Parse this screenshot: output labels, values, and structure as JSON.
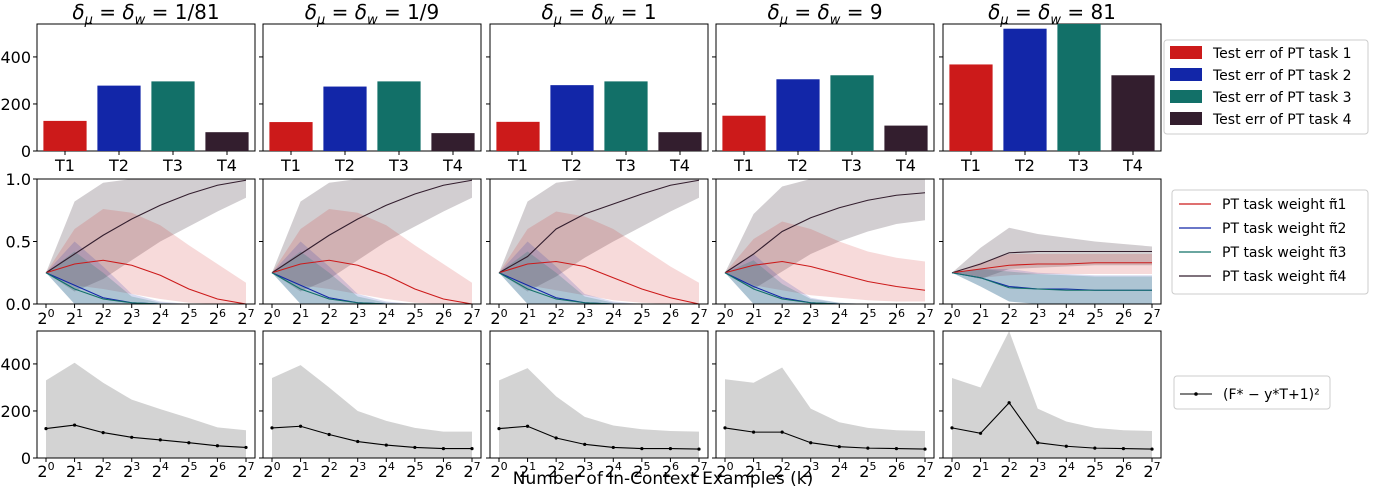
{
  "figure": {
    "xlabel": "Number of In-Context Examples (k)"
  },
  "titles": [
    "δμ = δw = 1/81",
    "δμ = δw = 1/9",
    "δμ = δw = 1",
    "δμ = δw = 9",
    "δμ = δw = 81"
  ],
  "title_prefix": "δ",
  "panel_params": [
    "1/81",
    "1/9",
    "1",
    "9",
    "81"
  ],
  "colors": {
    "task1": "#cc1a1a",
    "task2": "#1226a8",
    "task3": "#127068",
    "task4": "#331e2e",
    "error_line": "#000000",
    "error_band": "#d3d3d3"
  },
  "legends": {
    "row1": [
      "Test err of PT task 1",
      "Test err of PT task 2",
      "Test err of PT task 3",
      "Test err of PT task 4"
    ],
    "row2": [
      "PT task weight π̃1",
      "PT task weight π̃2",
      "PT task weight π̃3",
      "PT task weight π̃4"
    ],
    "row3": [
      "(F* − y*T+1)²"
    ]
  },
  "chart_data": [
    {
      "type": "bar",
      "row": "test error per pretraining task",
      "categories": [
        "T1",
        "T2",
        "T3",
        "T4"
      ],
      "ylim": [
        0,
        540
      ],
      "yticks": [
        0,
        200,
        400
      ],
      "panels": [
        {
          "param": "1/81",
          "values": [
            128,
            278,
            296,
            80
          ]
        },
        {
          "param": "1/9",
          "values": [
            123,
            274,
            296,
            76
          ]
        },
        {
          "param": "1",
          "values": [
            124,
            280,
            296,
            80
          ]
        },
        {
          "param": "9",
          "values": [
            150,
            305,
            322,
            108
          ]
        },
        {
          "param": "81",
          "values": [
            368,
            520,
            540,
            322
          ]
        }
      ]
    },
    {
      "type": "line",
      "row": "PT task weight vs number of in-context examples",
      "x_tick_labels": [
        "2^0",
        "2^1",
        "2^2",
        "2^3",
        "2^4",
        "2^5",
        "2^6",
        "2^7"
      ],
      "x": [
        1,
        2,
        4,
        8,
        16,
        32,
        64,
        128
      ],
      "ylim": [
        0,
        1
      ],
      "yticks": [
        0.0,
        0.5,
        1.0
      ],
      "ytick_labels": [
        "0.0",
        "0.5",
        "1.0"
      ],
      "panels": [
        {
          "param": "1/81",
          "series": [
            {
              "values": [
                0.25,
                0.32,
                0.35,
                0.31,
                0.23,
                0.12,
                0.04,
                0.0
              ],
              "lower": [
                0.25,
                0.15,
                0.12,
                0.08,
                0.04,
                0.01,
                0.0,
                0.0
              ],
              "upper": [
                0.25,
                0.6,
                0.76,
                0.73,
                0.63,
                0.47,
                0.32,
                0.17
              ]
            },
            {
              "values": [
                0.25,
                0.15,
                0.05,
                0.01,
                0.0,
                0.0,
                0.0,
                0.0
              ],
              "lower": [
                0.25,
                0.0,
                0.0,
                0.0,
                0.0,
                0.0,
                0.0,
                0.0
              ],
              "upper": [
                0.25,
                0.5,
                0.3,
                0.08,
                0.02,
                0.0,
                0.0,
                0.0
              ]
            },
            {
              "values": [
                0.25,
                0.12,
                0.04,
                0.01,
                0.0,
                0.0,
                0.0,
                0.0
              ],
              "lower": [
                0.25,
                0.0,
                0.0,
                0.0,
                0.0,
                0.0,
                0.0,
                0.0
              ],
              "upper": [
                0.25,
                0.42,
                0.25,
                0.06,
                0.01,
                0.0,
                0.0,
                0.0
              ]
            },
            {
              "values": [
                0.25,
                0.4,
                0.55,
                0.68,
                0.79,
                0.88,
                0.95,
                0.99
              ],
              "lower": [
                0.25,
                0.1,
                0.2,
                0.35,
                0.5,
                0.62,
                0.74,
                0.85
              ],
              "upper": [
                0.25,
                0.82,
                0.97,
                1.0,
                1.0,
                1.0,
                1.0,
                1.0
              ]
            }
          ]
        },
        {
          "param": "1/9",
          "series": [
            {
              "values": [
                0.25,
                0.32,
                0.35,
                0.31,
                0.23,
                0.12,
                0.04,
                0.0
              ],
              "lower": [
                0.25,
                0.15,
                0.12,
                0.08,
                0.04,
                0.01,
                0.0,
                0.0
              ],
              "upper": [
                0.25,
                0.6,
                0.76,
                0.73,
                0.63,
                0.47,
                0.32,
                0.17
              ]
            },
            {
              "values": [
                0.25,
                0.15,
                0.05,
                0.01,
                0.0,
                0.0,
                0.0,
                0.0
              ],
              "lower": [
                0.25,
                0.0,
                0.0,
                0.0,
                0.0,
                0.0,
                0.0,
                0.0
              ],
              "upper": [
                0.25,
                0.5,
                0.3,
                0.08,
                0.02,
                0.0,
                0.0,
                0.0
              ]
            },
            {
              "values": [
                0.25,
                0.12,
                0.04,
                0.01,
                0.0,
                0.0,
                0.0,
                0.0
              ],
              "lower": [
                0.25,
                0.0,
                0.0,
                0.0,
                0.0,
                0.0,
                0.0,
                0.0
              ],
              "upper": [
                0.25,
                0.42,
                0.25,
                0.06,
                0.01,
                0.0,
                0.0,
                0.0
              ]
            },
            {
              "values": [
                0.25,
                0.4,
                0.55,
                0.68,
                0.79,
                0.88,
                0.95,
                0.99
              ],
              "lower": [
                0.25,
                0.1,
                0.2,
                0.35,
                0.5,
                0.62,
                0.74,
                0.85
              ],
              "upper": [
                0.25,
                0.82,
                0.97,
                1.0,
                1.0,
                1.0,
                1.0,
                1.0
              ]
            }
          ]
        },
        {
          "param": "1",
          "series": [
            {
              "values": [
                0.25,
                0.32,
                0.34,
                0.3,
                0.21,
                0.12,
                0.05,
                0.0
              ],
              "lower": [
                0.25,
                0.15,
                0.11,
                0.07,
                0.03,
                0.01,
                0.0,
                0.0
              ],
              "upper": [
                0.25,
                0.6,
                0.74,
                0.7,
                0.6,
                0.45,
                0.3,
                0.17
              ]
            },
            {
              "values": [
                0.25,
                0.15,
                0.05,
                0.01,
                0.0,
                0.0,
                0.0,
                0.0
              ],
              "lower": [
                0.25,
                0.0,
                0.0,
                0.0,
                0.0,
                0.0,
                0.0,
                0.0
              ],
              "upper": [
                0.25,
                0.5,
                0.3,
                0.08,
                0.02,
                0.0,
                0.0,
                0.0
              ]
            },
            {
              "values": [
                0.25,
                0.12,
                0.04,
                0.01,
                0.0,
                0.0,
                0.0,
                0.0
              ],
              "lower": [
                0.25,
                0.0,
                0.0,
                0.0,
                0.0,
                0.0,
                0.0,
                0.0
              ],
              "upper": [
                0.25,
                0.42,
                0.25,
                0.06,
                0.01,
                0.0,
                0.0,
                0.0
              ]
            },
            {
              "values": [
                0.25,
                0.38,
                0.6,
                0.72,
                0.8,
                0.88,
                0.95,
                0.99
              ],
              "lower": [
                0.25,
                0.1,
                0.22,
                0.37,
                0.5,
                0.62,
                0.74,
                0.85
              ],
              "upper": [
                0.25,
                0.82,
                0.97,
                1.0,
                1.0,
                1.0,
                1.0,
                1.0
              ]
            }
          ]
        },
        {
          "param": "9",
          "series": [
            {
              "values": [
                0.25,
                0.31,
                0.34,
                0.3,
                0.24,
                0.18,
                0.14,
                0.11
              ],
              "lower": [
                0.25,
                0.15,
                0.11,
                0.07,
                0.05,
                0.03,
                0.02,
                0.02
              ],
              "upper": [
                0.25,
                0.52,
                0.66,
                0.6,
                0.5,
                0.42,
                0.37,
                0.34
              ]
            },
            {
              "values": [
                0.25,
                0.14,
                0.05,
                0.01,
                0.0,
                0.0,
                0.0,
                0.0
              ],
              "lower": [
                0.25,
                0.0,
                0.0,
                0.0,
                0.0,
                0.0,
                0.0,
                0.0
              ],
              "upper": [
                0.25,
                0.4,
                0.2,
                0.05,
                0.01,
                0.0,
                0.0,
                0.0
              ]
            },
            {
              "values": [
                0.25,
                0.12,
                0.04,
                0.01,
                0.0,
                0.0,
                0.0,
                0.0
              ],
              "lower": [
                0.25,
                0.0,
                0.0,
                0.0,
                0.0,
                0.0,
                0.0,
                0.0
              ],
              "upper": [
                0.25,
                0.35,
                0.16,
                0.04,
                0.01,
                0.0,
                0.0,
                0.0
              ]
            },
            {
              "values": [
                0.25,
                0.4,
                0.58,
                0.69,
                0.77,
                0.83,
                0.87,
                0.89
              ],
              "lower": [
                0.25,
                0.12,
                0.26,
                0.4,
                0.5,
                0.58,
                0.64,
                0.67
              ],
              "upper": [
                0.25,
                0.72,
                0.94,
                1.0,
                1.0,
                1.0,
                1.0,
                1.0
              ]
            }
          ]
        },
        {
          "param": "81",
          "series": [
            {
              "values": [
                0.25,
                0.28,
                0.31,
                0.32,
                0.32,
                0.33,
                0.33,
                0.33
              ],
              "lower": [
                0.25,
                0.21,
                0.23,
                0.24,
                0.24,
                0.24,
                0.24,
                0.24
              ],
              "upper": [
                0.25,
                0.33,
                0.4,
                0.4,
                0.4,
                0.4,
                0.4,
                0.4
              ]
            },
            {
              "values": [
                0.25,
                0.21,
                0.14,
                0.12,
                0.12,
                0.11,
                0.11,
                0.11
              ],
              "lower": [
                0.25,
                0.14,
                0.02,
                0.0,
                0.0,
                0.0,
                0.0,
                0.0
              ],
              "upper": [
                0.25,
                0.28,
                0.28,
                0.25,
                0.24,
                0.23,
                0.23,
                0.23
              ]
            },
            {
              "values": [
                0.25,
                0.21,
                0.13,
                0.12,
                0.11,
                0.11,
                0.11,
                0.11
              ],
              "lower": [
                0.25,
                0.14,
                0.02,
                0.0,
                0.0,
                0.0,
                0.0,
                0.0
              ],
              "upper": [
                0.25,
                0.28,
                0.26,
                0.24,
                0.23,
                0.22,
                0.22,
                0.22
              ]
            },
            {
              "values": [
                0.25,
                0.32,
                0.41,
                0.42,
                0.42,
                0.42,
                0.42,
                0.42
              ],
              "lower": [
                0.25,
                0.2,
                0.28,
                0.29,
                0.3,
                0.31,
                0.31,
                0.31
              ],
              "upper": [
                0.25,
                0.45,
                0.61,
                0.56,
                0.53,
                0.5,
                0.48,
                0.46
              ]
            }
          ]
        }
      ]
    },
    {
      "type": "line",
      "row": "squared error vs number of in-context examples",
      "x_tick_labels": [
        "2^0",
        "2^1",
        "2^2",
        "2^3",
        "2^4",
        "2^5",
        "2^6",
        "2^7"
      ],
      "x": [
        1,
        2,
        4,
        8,
        16,
        32,
        64,
        128
      ],
      "ylim": [
        0,
        540
      ],
      "yticks": [
        0,
        200,
        400
      ],
      "panels": [
        {
          "param": "1/81",
          "values": [
            125,
            140,
            108,
            88,
            77,
            65,
            52,
            45
          ],
          "lower": [
            0,
            0,
            0,
            0,
            0,
            0,
            0,
            0
          ],
          "upper": [
            330,
            405,
            320,
            248,
            208,
            170,
            130,
            118
          ]
        },
        {
          "param": "1/9",
          "values": [
            128,
            135,
            100,
            70,
            55,
            45,
            40,
            40
          ],
          "lower": [
            0,
            0,
            0,
            0,
            0,
            0,
            0,
            0
          ],
          "upper": [
            340,
            395,
            300,
            200,
            158,
            128,
            112,
            112
          ]
        },
        {
          "param": "1",
          "values": [
            125,
            135,
            85,
            58,
            45,
            40,
            40,
            38
          ],
          "lower": [
            0,
            0,
            0,
            0,
            0,
            0,
            0,
            0
          ],
          "upper": [
            330,
            382,
            262,
            175,
            138,
            122,
            115,
            112
          ]
        },
        {
          "param": "9",
          "values": [
            128,
            110,
            110,
            65,
            48,
            42,
            40,
            38
          ],
          "lower": [
            0,
            0,
            0,
            0,
            0,
            0,
            0,
            0
          ],
          "upper": [
            335,
            320,
            385,
            210,
            152,
            128,
            118,
            115
          ]
        },
        {
          "param": "81",
          "values": [
            128,
            105,
            235,
            65,
            50,
            42,
            40,
            38
          ],
          "lower": [
            0,
            0,
            0,
            0,
            0,
            0,
            0,
            0
          ],
          "upper": [
            340,
            300,
            540,
            210,
            155,
            128,
            118,
            115
          ]
        }
      ]
    }
  ]
}
